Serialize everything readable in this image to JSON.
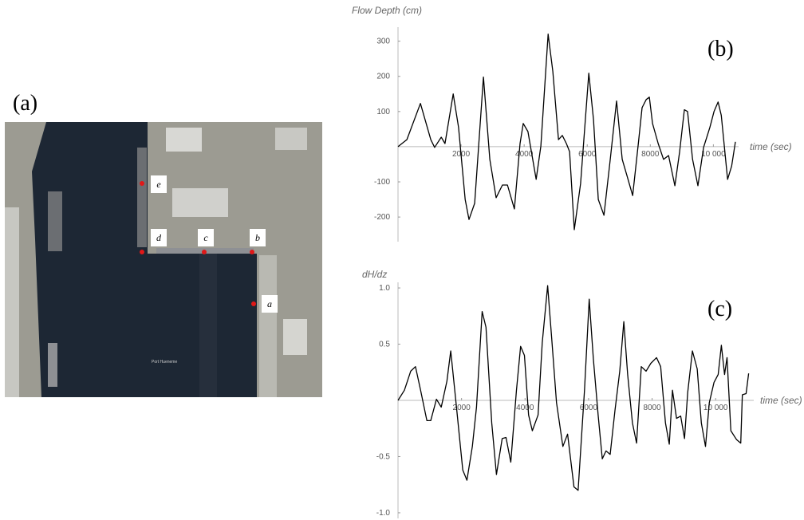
{
  "panel_a": {
    "label": "(a)",
    "points": [
      "a",
      "b",
      "c",
      "d",
      "e"
    ],
    "caption": "Port Hueneme"
  },
  "chart_data": [
    {
      "type": "line",
      "panel_label": "(b)",
      "ylabel": "Flow Depth (cm)",
      "xlabel": "time (sec)",
      "color": "#000000",
      "xlim": [
        0,
        10800
      ],
      "ylim": [
        -270,
        340
      ],
      "xticks": [
        2000,
        4000,
        6000,
        8000,
        {
          "value": 10000,
          "label": "10 000"
        }
      ],
      "yticks": [
        -200,
        -100,
        100,
        200,
        300
      ],
      "x": [
        0,
        280,
        710,
        1040,
        1160,
        1370,
        1490,
        1750,
        1920,
        2130,
        2250,
        2430,
        2710,
        2910,
        3110,
        3310,
        3470,
        3690,
        3870,
        3970,
        4120,
        4380,
        4530,
        4760,
        4910,
        5090,
        5210,
        5340,
        5440,
        5590,
        5790,
        6050,
        6200,
        6350,
        6530,
        6730,
        6930,
        7110,
        7260,
        7440,
        7620,
        7740,
        7870,
        7970,
        8070,
        8250,
        8420,
        8580,
        8780,
        8930,
        9080,
        9180,
        9340,
        9510,
        9690,
        9890,
        10020,
        10150,
        10250,
        10450,
        10580,
        10700
      ],
      "values": [
        0,
        20,
        123,
        20,
        -2,
        27,
        9,
        150,
        55,
        -150,
        -207,
        -161,
        198,
        -36,
        -145,
        -109,
        -109,
        -177,
        9,
        66,
        43,
        -93,
        2,
        320,
        214,
        20,
        32,
        9,
        -14,
        -236,
        -105,
        209,
        77,
        -150,
        -195,
        -36,
        130,
        -36,
        -82,
        -139,
        9,
        111,
        134,
        141,
        66,
        9,
        -36,
        -25,
        -111,
        -14,
        105,
        100,
        -36,
        -111,
        -2,
        55,
        100,
        127,
        89,
        -93,
        -55,
        14
      ]
    },
    {
      "type": "line",
      "panel_label": "(c)",
      "ylabel": "dH/dz",
      "xlabel": "time (sec)",
      "color": "#000000",
      "xlim": [
        0,
        11200
      ],
      "ylim": [
        -1.05,
        1.05
      ],
      "xticks": [
        2000,
        4000,
        6000,
        8000,
        {
          "value": 10000,
          "label": "10 000"
        }
      ],
      "yticks": [
        {
          "value": -1,
          "label": "-1.0"
        },
        -0.5,
        0.5,
        {
          "value": 1,
          "label": "1.0"
        }
      ],
      "x": [
        0,
        200,
        400,
        550,
        710,
        910,
        1030,
        1210,
        1360,
        1540,
        1660,
        1840,
        2040,
        2170,
        2340,
        2470,
        2650,
        2770,
        2950,
        3100,
        3280,
        3400,
        3550,
        3730,
        3860,
        3980,
        4110,
        4230,
        4410,
        4540,
        4710,
        4840,
        4990,
        5190,
        5340,
        5540,
        5670,
        5870,
        6020,
        6150,
        6300,
        6430,
        6550,
        6680,
        6830,
        6980,
        7110,
        7230,
        7380,
        7510,
        7660,
        7810,
        7960,
        8140,
        8270,
        8420,
        8540,
        8640,
        8770,
        8900,
        9020,
        9120,
        9270,
        9420,
        9550,
        9680,
        9800,
        9950,
        10080,
        10180,
        10280,
        10360,
        10480,
        10660,
        10790,
        10840,
        10960,
        11040
      ],
      "values": [
        0,
        0.09,
        0.26,
        0.3,
        0.09,
        -0.18,
        -0.18,
        0.01,
        -0.06,
        0.17,
        0.44,
        -0.06,
        -0.62,
        -0.71,
        -0.41,
        -0.06,
        0.79,
        0.65,
        -0.2,
        -0.66,
        -0.34,
        -0.33,
        -0.55,
        0.09,
        0.48,
        0.4,
        -0.13,
        -0.27,
        -0.13,
        0.51,
        1.02,
        0.55,
        -0.02,
        -0.41,
        -0.3,
        -0.77,
        -0.8,
        0.09,
        0.9,
        0.37,
        -0.13,
        -0.52,
        -0.45,
        -0.48,
        -0.09,
        0.26,
        0.7,
        0.23,
        -0.2,
        -0.38,
        0.3,
        0.26,
        0.33,
        0.38,
        0.3,
        -0.2,
        -0.39,
        0.09,
        -0.16,
        -0.14,
        -0.34,
        0.07,
        0.44,
        0.28,
        -0.2,
        -0.41,
        -0.02,
        0.16,
        0.23,
        0.49,
        0.23,
        0.38,
        -0.27,
        -0.35,
        -0.38,
        0.05,
        0.06,
        0.24
      ]
    }
  ]
}
